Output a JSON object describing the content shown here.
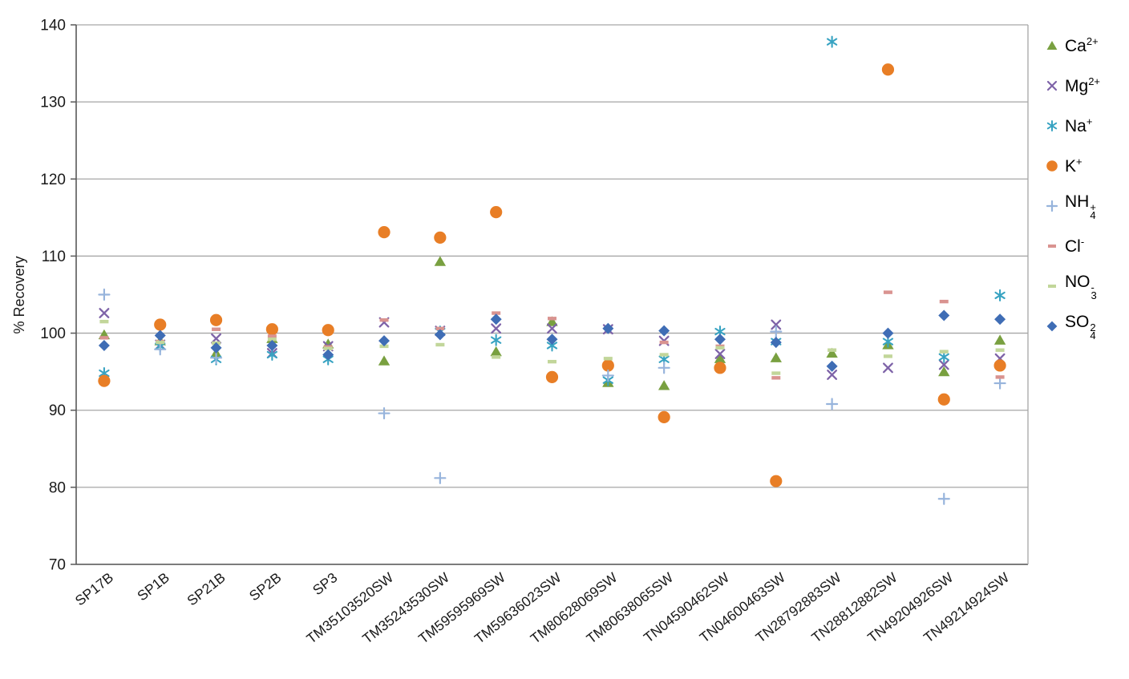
{
  "chart_data": {
    "type": "scatter",
    "title": "",
    "xlabel": "",
    "ylabel": "% Recovery",
    "ylim": [
      70,
      140
    ],
    "yticks": [
      70,
      80,
      90,
      100,
      110,
      120,
      130,
      140
    ],
    "grid": "horizontal-only",
    "legend_position": "right",
    "categories": [
      "SP17B",
      "SP1B",
      "SP21B",
      "SP2B",
      "SP3",
      "TM35103520SW",
      "TM35243530SW",
      "TM59595969SW",
      "TM59636023SW",
      "TM80628069SW",
      "TM80638065SW",
      "TN04590462SW",
      "TN04600463SW",
      "TN28792883SW",
      "TN28812882SW",
      "TN49204926SW",
      "TN49214924SW"
    ],
    "series": [
      {
        "id": "ca",
        "label_base": "Ca",
        "label_sup": "2+",
        "marker": "triangle",
        "color": "#79A040",
        "values": [
          99.8,
          99.0,
          97.4,
          99.3,
          98.6,
          96.4,
          109.3,
          97.6,
          101.5,
          93.6,
          93.2,
          96.7,
          96.8,
          97.4,
          98.5,
          95.0,
          99.1
        ]
      },
      {
        "id": "mg",
        "label_base": "Mg",
        "label_sup": "2+",
        "marker": "x",
        "color": "#7E63A8",
        "values": [
          102.6,
          98.5,
          99.3,
          97.4,
          98.3,
          101.4,
          100.3,
          100.6,
          100.6,
          100.5,
          99.0,
          97.3,
          101.1,
          94.6,
          95.5,
          95.9,
          96.7
        ]
      },
      {
        "id": "na",
        "label_base": "Na",
        "label_sup": "+",
        "marker": "asterisk",
        "color": "#38A3C2",
        "values": [
          94.8,
          98.3,
          96.6,
          97.2,
          96.6,
          null,
          100.2,
          99.1,
          98.4,
          93.9,
          96.6,
          100.2,
          98.9,
          137.8,
          98.9,
          96.9,
          104.9
        ]
      },
      {
        "id": "k",
        "label_base": "K",
        "label_sup": "+",
        "marker": "circle",
        "color": "#E87E26",
        "values": [
          93.8,
          101.1,
          101.7,
          100.5,
          100.4,
          113.1,
          112.4,
          115.7,
          94.3,
          95.8,
          89.1,
          95.5,
          80.8,
          null,
          134.2,
          91.4,
          95.8
        ]
      },
      {
        "id": "nh4",
        "label_base": "NH",
        "stack_sup": "+",
        "stack_sub": "4",
        "marker": "plus",
        "color": "#97B4DC",
        "values": [
          105.0,
          97.9,
          96.8,
          null,
          null,
          89.6,
          81.2,
          null,
          null,
          94.5,
          95.5,
          null,
          100.2,
          90.8,
          null,
          78.5,
          93.5
        ]
      },
      {
        "id": "cl",
        "label_base": "Cl",
        "label_sup": "-",
        "marker": "dash",
        "color": "#D99390",
        "values": [
          99.4,
          98.9,
          100.5,
          99.6,
          98.2,
          101.7,
          100.6,
          102.6,
          101.9,
          null,
          98.8,
          98.3,
          94.2,
          null,
          105.3,
          104.1,
          94.3
        ]
      },
      {
        "id": "no3",
        "label_base": "NO",
        "stack_sup": "-",
        "stack_sub": "3",
        "marker": "dash",
        "color": "#C2D69A",
        "values": [
          101.5,
          98.8,
          98.7,
          99.2,
          98.0,
          98.3,
          98.5,
          96.9,
          96.3,
          96.7,
          97.2,
          98.1,
          94.8,
          97.8,
          97.0,
          97.6,
          97.8
        ]
      },
      {
        "id": "so4",
        "label_base": "SO",
        "stack_sup": "2",
        "stack_sub": "4",
        "marker": "diamond",
        "color": "#3F6DB5",
        "values": [
          98.4,
          99.7,
          98.1,
          98.4,
          97.2,
          99.0,
          99.8,
          101.8,
          99.2,
          100.6,
          100.3,
          99.2,
          98.8,
          95.7,
          100.0,
          102.3,
          101.8
        ]
      }
    ],
    "style": {
      "gridline_color": "#A6A6A6",
      "axis_color": "#595959",
      "plot_right_border_color": "#A6A6A6",
      "background": "#FFFFFF"
    }
  }
}
